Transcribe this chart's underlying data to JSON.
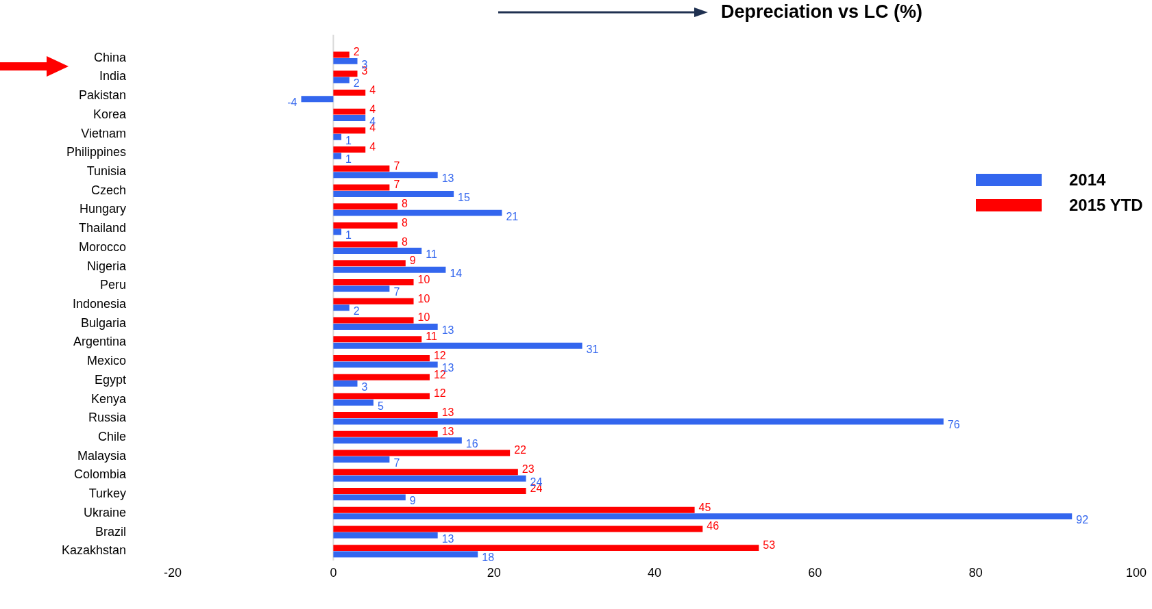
{
  "chart_data": {
    "type": "bar",
    "orientation": "horizontal",
    "title": "Depreciation vs LC (%)",
    "categories": [
      "China",
      "India",
      "Pakistan",
      "Korea",
      "Vietnam",
      "Philippines",
      "Tunisia",
      "Czech",
      "Hungary",
      "Thailand",
      "Morocco",
      "Nigeria",
      "Peru",
      "Indonesia",
      "Bulgaria",
      "Argentina",
      "Mexico",
      "Egypt",
      "Kenya",
      "Russia",
      "Chile",
      "Malaysia",
      "Colombia",
      "Turkey",
      "Ukraine",
      "Brazil",
      "Kazakhstan"
    ],
    "series": [
      {
        "name": "2014",
        "color": "#3366ee",
        "values": [
          3,
          2,
          -4,
          4,
          1,
          1,
          13,
          15,
          21,
          1,
          11,
          14,
          7,
          2,
          13,
          31,
          13,
          3,
          5,
          76,
          16,
          7,
          24,
          9,
          92,
          13,
          18
        ]
      },
      {
        "name": "2015 YTD",
        "color": "#ff0000",
        "values": [
          2,
          3,
          4,
          4,
          4,
          4,
          7,
          7,
          8,
          8,
          8,
          9,
          10,
          10,
          10,
          11,
          12,
          12,
          12,
          13,
          13,
          22,
          23,
          24,
          45,
          46,
          53
        ]
      }
    ],
    "xlim": [
      -20,
      100
    ],
    "xticks": [
      -20,
      0,
      20,
      40,
      60,
      80,
      100
    ],
    "data_labels": true,
    "legend": "right",
    "ref_lines": [
      {
        "axis": "x",
        "value": 0,
        "color": "#d9d9d9"
      }
    ]
  }
}
